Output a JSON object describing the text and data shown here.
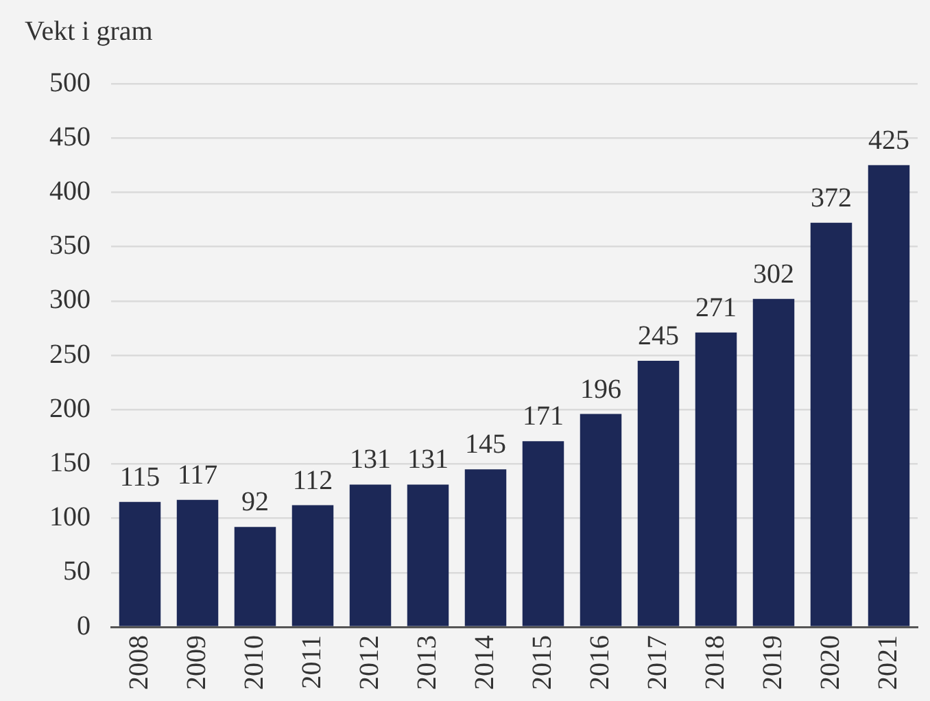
{
  "chart_data": {
    "type": "bar",
    "ylabel": "Vekt i gram",
    "categories": [
      "2008",
      "2009",
      "2010",
      "2011",
      "2012",
      "2013",
      "2014",
      "2015",
      "2016",
      "2017",
      "2018",
      "2019",
      "2020",
      "2021"
    ],
    "values": [
      115,
      117,
      92,
      112,
      131,
      131,
      145,
      171,
      196,
      245,
      271,
      302,
      372,
      425
    ],
    "color": "#1c2857",
    "ylim": [
      0,
      500
    ],
    "yticks": [
      0,
      50,
      100,
      150,
      200,
      250,
      300,
      350,
      400,
      450,
      500
    ],
    "grid": "y",
    "data_labels": true
  }
}
